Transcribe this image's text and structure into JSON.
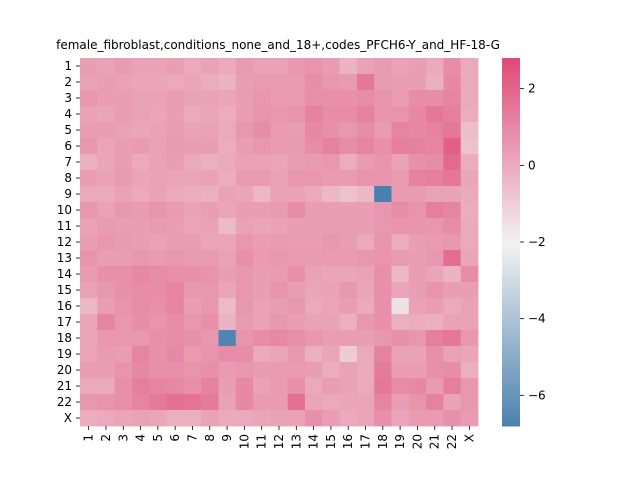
{
  "chart_data": {
    "type": "heatmap",
    "title": "female_fibroblast,conditions_none_and_18+,codes_PFCH6-Y_and_HF-18-G",
    "row_labels": [
      "1",
      "2",
      "3",
      "4",
      "5",
      "6",
      "7",
      "8",
      "9",
      "10",
      "11",
      "12",
      "13",
      "14",
      "15",
      "16",
      "17",
      "18",
      "19",
      "20",
      "21",
      "22",
      "X"
    ],
    "col_labels": [
      "1",
      "2",
      "3",
      "4",
      "5",
      "6",
      "7",
      "8",
      "9",
      "10",
      "11",
      "12",
      "13",
      "14",
      "15",
      "16",
      "17",
      "18",
      "19",
      "20",
      "21",
      "22",
      "X"
    ],
    "values": [
      [
        0.4,
        0.3,
        0.5,
        0.3,
        0.3,
        0.4,
        0.1,
        0.3,
        0.1,
        0.5,
        0.3,
        0.3,
        0.6,
        0.7,
        0.5,
        -0.2,
        0.3,
        0.5,
        0.3,
        0.4,
        0.1,
        0.9,
        0.1
      ],
      [
        0.3,
        0.4,
        0.3,
        0.2,
        0.2,
        0.1,
        0.2,
        0.0,
        -0.2,
        0.4,
        0.5,
        0.5,
        0.5,
        0.9,
        0.6,
        0.5,
        1.5,
        0.5,
        0.4,
        0.4,
        -0.1,
        1.0,
        0.1
      ],
      [
        0.6,
        0.4,
        0.4,
        0.3,
        0.3,
        0.4,
        0.3,
        0.3,
        0.2,
        0.4,
        0.6,
        0.5,
        0.5,
        0.8,
        0.8,
        0.8,
        0.9,
        0.7,
        0.4,
        0.9,
        0.9,
        1.1,
        0.1
      ],
      [
        0.3,
        0.2,
        0.4,
        0.3,
        0.2,
        0.4,
        0.1,
        0.2,
        0.0,
        0.4,
        0.7,
        0.6,
        0.7,
        1.2,
        0.9,
        0.9,
        1.2,
        0.7,
        0.7,
        1.0,
        1.5,
        1.3,
        0.0
      ],
      [
        0.4,
        0.4,
        0.3,
        0.2,
        0.3,
        0.4,
        0.3,
        0.3,
        0.1,
        0.6,
        0.9,
        0.5,
        0.4,
        1.0,
        0.8,
        0.6,
        0.9,
        0.5,
        1.1,
        1.0,
        1.2,
        1.5,
        -0.5
      ],
      [
        0.6,
        0.2,
        0.4,
        0.5,
        0.3,
        0.5,
        0.4,
        0.4,
        0.0,
        0.4,
        0.6,
        0.5,
        0.5,
        0.9,
        1.2,
        0.9,
        1.1,
        0.8,
        1.3,
        1.2,
        1.1,
        2.2,
        -0.6
      ],
      [
        -0.1,
        0.2,
        0.4,
        0.1,
        0.3,
        0.4,
        0.1,
        -0.1,
        0.1,
        0.3,
        0.3,
        0.2,
        0.4,
        0.5,
        0.6,
        0.0,
        0.5,
        0.7,
        0.3,
        0.8,
        0.9,
        1.9,
        0.0
      ],
      [
        0.4,
        0.3,
        0.5,
        0.2,
        0.3,
        0.2,
        0.2,
        0.3,
        0.0,
        0.5,
        0.5,
        0.3,
        0.6,
        0.6,
        0.5,
        0.5,
        0.7,
        0.7,
        0.5,
        1.2,
        1.3,
        1.5,
        0.2
      ],
      [
        0.1,
        0.1,
        0.3,
        0.1,
        0.3,
        0.1,
        0.0,
        -0.1,
        0.3,
        0.2,
        -0.3,
        0.3,
        0.3,
        0.1,
        -0.3,
        -0.6,
        -0.3,
        -6.8,
        0.5,
        0.5,
        0.3,
        0.3,
        0.1
      ],
      [
        0.6,
        0.3,
        0.6,
        0.5,
        0.7,
        0.5,
        0.3,
        0.4,
        0.2,
        0.4,
        0.4,
        0.5,
        0.9,
        0.4,
        0.4,
        0.4,
        0.4,
        0.6,
        0.9,
        0.7,
        1.3,
        1.1,
        0.0
      ],
      [
        0.3,
        0.5,
        0.4,
        0.4,
        0.5,
        0.4,
        0.2,
        0.3,
        -0.4,
        0.3,
        0.2,
        0.3,
        0.4,
        0.4,
        0.4,
        0.4,
        0.4,
        0.6,
        0.7,
        0.7,
        0.6,
        0.9,
        0.1
      ],
      [
        0.4,
        0.6,
        0.5,
        0.4,
        0.3,
        0.4,
        0.4,
        0.2,
        0.2,
        0.6,
        0.4,
        0.5,
        0.4,
        0.4,
        0.6,
        0.4,
        0.1,
        0.7,
        0.0,
        0.4,
        0.5,
        0.6,
        0.1
      ],
      [
        0.7,
        0.4,
        0.4,
        0.6,
        0.5,
        0.6,
        0.5,
        0.5,
        0.3,
        0.8,
        0.5,
        0.6,
        0.5,
        0.5,
        0.5,
        0.5,
        0.6,
        0.7,
        0.5,
        0.4,
        0.6,
        1.8,
        0.2
      ],
      [
        0.5,
        0.8,
        0.8,
        1.0,
        0.9,
        0.8,
        0.8,
        0.7,
        0.4,
        0.6,
        0.4,
        0.5,
        0.8,
        0.3,
        0.2,
        0.2,
        0.3,
        0.8,
        -0.3,
        0.4,
        0.2,
        -0.2,
        0.9
      ],
      [
        0.3,
        0.6,
        0.8,
        0.9,
        0.9,
        1.1,
        0.6,
        0.6,
        0.2,
        0.6,
        0.4,
        0.7,
        0.4,
        0.2,
        0.3,
        0.6,
        0.2,
        0.8,
        0.2,
        0.4,
        0.7,
        0.4,
        0.4
      ],
      [
        -0.3,
        0.4,
        0.7,
        0.9,
        0.8,
        1.1,
        0.4,
        0.6,
        -0.4,
        0.6,
        0.3,
        0.4,
        0.6,
        0.1,
        0.2,
        0.4,
        0.1,
        0.8,
        -1.5,
        0.3,
        0.4,
        0.1,
        0.3
      ],
      [
        0.2,
        1.1,
        0.6,
        0.9,
        0.7,
        0.9,
        0.6,
        0.8,
        -0.2,
        0.5,
        0.3,
        0.6,
        0.4,
        0.3,
        0.3,
        -0.1,
        0.6,
        0.8,
        -0.1,
        0.0,
        -0.1,
        0.3,
        0.3
      ],
      [
        0.2,
        0.6,
        0.6,
        0.6,
        0.8,
        0.9,
        0.8,
        0.6,
        -6.6,
        0.7,
        0.9,
        1.0,
        0.8,
        0.6,
        0.4,
        0.4,
        0.4,
        0.6,
        0.8,
        0.6,
        1.3,
        1.5,
        0.6
      ],
      [
        0.2,
        0.5,
        0.4,
        1.1,
        0.8,
        1.0,
        0.5,
        0.7,
        0.9,
        0.9,
        0.1,
        0.2,
        0.6,
        -0.1,
        0.2,
        -0.9,
        0.1,
        1.2,
        0.3,
        0.3,
        0.8,
        0.3,
        0.2
      ],
      [
        0.4,
        0.4,
        0.7,
        1.0,
        0.8,
        0.8,
        0.7,
        0.8,
        0.5,
        0.6,
        0.5,
        0.5,
        0.5,
        0.4,
        0.0,
        0.3,
        0.1,
        1.4,
        0.4,
        0.4,
        0.8,
        0.9,
        -0.1
      ],
      [
        0.1,
        0.1,
        0.8,
        1.3,
        1.1,
        1.0,
        0.8,
        1.2,
        0.4,
        1.0,
        0.3,
        0.5,
        0.8,
        0.1,
        0.4,
        0.3,
        0.1,
        1.5,
        0.9,
        1.0,
        0.5,
        1.3,
        0.6
      ],
      [
        0.6,
        0.7,
        0.8,
        1.1,
        1.4,
        1.7,
        1.6,
        1.4,
        0.3,
        1.0,
        0.5,
        0.5,
        1.7,
        0.2,
        0.1,
        0.2,
        0.2,
        1.1,
        0.4,
        0.7,
        1.2,
        0.3,
        0.6
      ],
      [
        0.0,
        0.1,
        0.2,
        0.3,
        0.2,
        -0.1,
        -0.1,
        0.3,
        0.1,
        0.1,
        0.2,
        0.3,
        0.3,
        0.8,
        0.4,
        0.1,
        0.2,
        0.8,
        0.2,
        0.5,
        0.5,
        0.8,
        0.5
      ]
    ],
    "vmin": -6.8,
    "vmax": 2.8,
    "colorbar_ticks": [
      -6,
      -4,
      -2,
      0,
      2
    ],
    "colors": {
      "low": "#4a80ad",
      "mid": "#f2f2f2",
      "high": "#e04a78"
    }
  }
}
